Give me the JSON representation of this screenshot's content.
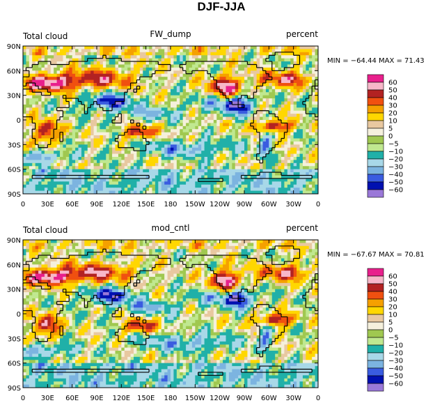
{
  "figure_title": "DJF-JJA",
  "chart_data": [
    {
      "type": "heatmap",
      "variable_label": "Total cloud",
      "run_label": "FW_dump",
      "units_label": "percent",
      "stats_text": "MIN = −64.44 MAX =   71.43",
      "min": -64.44,
      "max": 71.43,
      "x_tick_labels": [
        "0",
        "30E",
        "60E",
        "90E",
        "120E",
        "150E",
        "180",
        "150W",
        "120W",
        "90W",
        "60W",
        "30W",
        "0"
      ],
      "y_tick_labels": [
        "90N",
        "60N",
        "30N",
        "0",
        "30S",
        "60S",
        "90S"
      ],
      "xlim": [
        0,
        360
      ],
      "ylim": [
        -90,
        90
      ]
    },
    {
      "type": "heatmap",
      "variable_label": "Total cloud",
      "run_label": "mod_cntl",
      "units_label": "percent",
      "stats_text": "MIN = −67.67 MAX =   70.81",
      "min": -67.67,
      "max": 70.81,
      "x_tick_labels": [
        "0",
        "30E",
        "60E",
        "90E",
        "120E",
        "150E",
        "180",
        "150W",
        "120W",
        "90W",
        "60W",
        "30W",
        "0"
      ],
      "y_tick_labels": [
        "90N",
        "60N",
        "30N",
        "0",
        "30S",
        "60S",
        "90S"
      ],
      "xlim": [
        0,
        360
      ],
      "ylim": [
        -90,
        90
      ]
    }
  ],
  "colorbar": {
    "levels": [
      "60",
      "50",
      "40",
      "30",
      "20",
      "10",
      "5",
      "0",
      "−5",
      "−10",
      "−20",
      "−30",
      "−40",
      "−50",
      "−60"
    ],
    "colors": [
      "#e8208c",
      "#f7b7c9",
      "#b22222",
      "#f05010",
      "#f5a000",
      "#ffd700",
      "#e8c8a0",
      "#f5f0dc",
      "#a0c850",
      "#c0e890",
      "#20b0a8",
      "#a8d8e8",
      "#7cb4e0",
      "#3a5ce0",
      "#0010b0",
      "#9a78d8"
    ]
  }
}
